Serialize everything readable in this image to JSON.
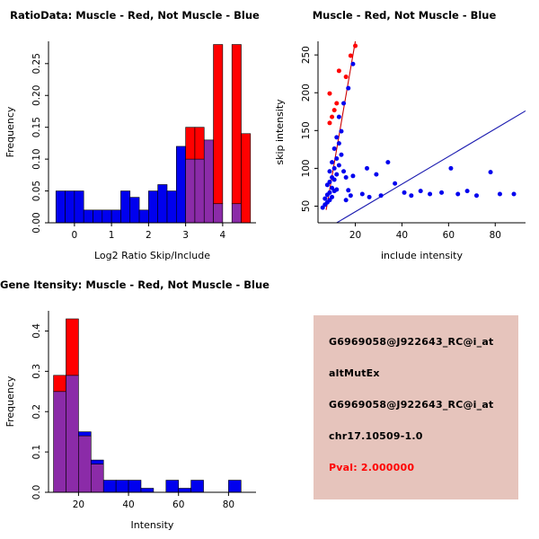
{
  "colors": {
    "red": "#FF0000",
    "blue": "#0000EE",
    "overlap": "#8B2BA8",
    "red_line": "#CC0000",
    "blue_line": "#1C1CB0",
    "axis": "#000000",
    "info_bg": "#E6C4BC",
    "pval": "#FF0000"
  },
  "chart_data": [
    {
      "type": "hist_overlay",
      "title": "RatioData: Muscle - Red, Not Muscle - Blue",
      "xlabel": "Log2 Ratio Skip/Include",
      "ylabel": "Frequency",
      "bin_start": -0.5,
      "bin_width": 0.25,
      "xlim": [
        -0.7,
        4.9
      ],
      "ylim": [
        0,
        0.285
      ],
      "xticks": [
        0,
        1,
        2,
        3,
        4
      ],
      "yticks": [
        0,
        0.05,
        0.1,
        0.15,
        0.2,
        0.25
      ],
      "ytick_labels": [
        "0.00",
        "0.05",
        "0.10",
        "0.15",
        "0.20",
        "0.25"
      ],
      "series": [
        {
          "name": "Not Muscle",
          "color": "blue",
          "values": [
            0.05,
            0.05,
            0.05,
            0.02,
            0.02,
            0.02,
            0.02,
            0.05,
            0.04,
            0.02,
            0.05,
            0.06,
            0.05,
            0.12,
            0.1,
            0.1,
            0.13,
            0.03,
            0,
            0.03,
            0
          ]
        },
        {
          "name": "Muscle",
          "color": "red",
          "values": [
            0,
            0,
            0,
            0,
            0,
            0,
            0,
            0,
            0,
            0,
            0,
            0,
            0,
            0,
            0.15,
            0.15,
            0.13,
            0.28,
            0,
            0.28,
            0.14
          ]
        }
      ]
    },
    {
      "type": "scatter",
      "title": "Muscle - Red, Not Muscle - Blue",
      "xlabel": "include intensity",
      "ylabel": "skip intensity",
      "xlim": [
        4,
        93
      ],
      "ylim": [
        28,
        268
      ],
      "xticks": [
        20,
        40,
        60,
        80
      ],
      "yticks": [
        50,
        100,
        150,
        200,
        250
      ],
      "lines": [
        {
          "color": "red",
          "from": [
            7.5,
            45
          ],
          "to": [
            20,
            268
          ]
        },
        {
          "color": "blue",
          "from": [
            12,
            28
          ],
          "to": [
            93,
            176
          ]
        }
      ],
      "series": [
        {
          "name": "Not Muscle",
          "color": "blue",
          "points": [
            [
              6,
              48
            ],
            [
              7,
              52
            ],
            [
              8,
              55
            ],
            [
              7,
              60
            ],
            [
              9,
              58
            ],
            [
              10,
              62
            ],
            [
              8,
              65
            ],
            [
              9,
              68
            ],
            [
              11,
              70
            ],
            [
              10,
              74
            ],
            [
              12,
              72
            ],
            [
              8,
              78
            ],
            [
              9,
              82
            ],
            [
              11,
              85
            ],
            [
              10,
              88
            ],
            [
              12,
              92
            ],
            [
              9,
              96
            ],
            [
              11,
              100
            ],
            [
              13,
              104
            ],
            [
              10,
              108
            ],
            [
              12,
              113
            ],
            [
              14,
              118
            ],
            [
              11,
              126
            ],
            [
              13,
              133
            ],
            [
              12,
              141
            ],
            [
              14,
              149
            ],
            [
              15,
              96
            ],
            [
              16,
              88
            ],
            [
              17,
              71
            ],
            [
              18,
              64
            ],
            [
              16,
              58
            ],
            [
              19,
              90
            ],
            [
              13,
              168
            ],
            [
              15,
              186
            ],
            [
              17,
              206
            ],
            [
              19,
              238
            ],
            [
              25,
              100
            ],
            [
              23,
              66
            ],
            [
              26,
              62
            ],
            [
              29,
              92
            ],
            [
              31,
              64
            ],
            [
              34,
              108
            ],
            [
              37,
              80
            ],
            [
              41,
              68
            ],
            [
              44,
              64
            ],
            [
              48,
              70
            ],
            [
              52,
              66
            ],
            [
              57,
              68
            ],
            [
              61,
              100
            ],
            [
              64,
              66
            ],
            [
              68,
              70
            ],
            [
              72,
              64
            ],
            [
              78,
              95
            ],
            [
              82,
              66
            ],
            [
              88,
              66
            ]
          ]
        },
        {
          "name": "Muscle",
          "color": "red",
          "points": [
            [
              9,
              160
            ],
            [
              10,
              168
            ],
            [
              11,
              177
            ],
            [
              9,
              199
            ],
            [
              12,
              186
            ],
            [
              13,
              229
            ],
            [
              16,
              221
            ],
            [
              18,
              249
            ],
            [
              20,
              262
            ]
          ]
        }
      ]
    },
    {
      "type": "hist_overlay",
      "title": "Gene Itensity: Muscle - Red, Not Muscle - Blue",
      "xlabel": "Intensity",
      "ylabel": "Frequency",
      "bin_start": 10,
      "bin_width": 5,
      "xlim": [
        8,
        91
      ],
      "ylim": [
        0,
        0.45
      ],
      "xticks": [
        20,
        40,
        60,
        80
      ],
      "yticks": [
        0,
        0.1,
        0.2,
        0.3,
        0.4
      ],
      "ytick_labels": [
        "0.0",
        "0.1",
        "0.2",
        "0.3",
        "0.4"
      ],
      "series": [
        {
          "name": "Not Muscle",
          "color": "blue",
          "values": [
            0.25,
            0.29,
            0.15,
            0.08,
            0.03,
            0.03,
            0.03,
            0.01,
            0,
            0.03,
            0.01,
            0.03,
            0,
            0,
            0.03,
            0
          ]
        },
        {
          "name": "Muscle",
          "color": "red",
          "values": [
            0.29,
            0.43,
            0.14,
            0.07,
            0,
            0,
            0,
            0,
            0,
            0,
            0,
            0,
            0,
            0,
            0,
            0
          ]
        }
      ]
    }
  ],
  "info_panel": {
    "lines": [
      {
        "text": "G6969058@J922643_RC@i_at",
        "emphasis": "normal"
      },
      {
        "text": "altMutEx",
        "emphasis": "normal"
      },
      {
        "text": "G6969058@J922643_RC@i_at",
        "emphasis": "normal"
      },
      {
        "text": "chr17.10509-1.0",
        "emphasis": "normal"
      },
      {
        "text": "Pval: 2.000000",
        "emphasis": "red"
      }
    ]
  }
}
